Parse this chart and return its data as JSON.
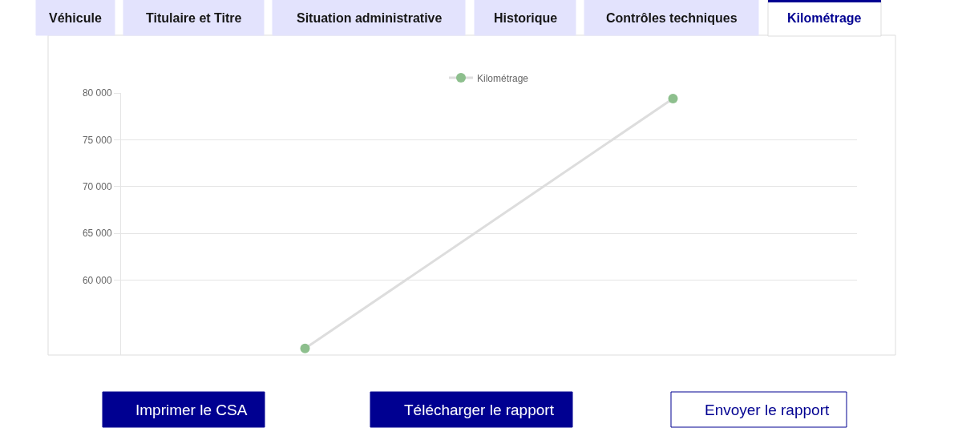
{
  "chart_data": {
    "type": "line",
    "categories": [
      null,
      null
    ],
    "series": [
      {
        "name": "Kilométrage",
        "color": "#dddddd",
        "colors": [
          "#8dbf8d",
          "#8dbf8d"
        ],
        "values": [
          52700,
          79400
        ]
      }
    ],
    "ylim": [
      52000,
      80000
    ],
    "yticks": [
      {
        "value": 60000,
        "label": "60 000"
      },
      {
        "value": 65000,
        "label": "65 000"
      },
      {
        "value": 70000,
        "label": "70 000"
      },
      {
        "value": 75000,
        "label": "75 000"
      },
      {
        "value": 80000,
        "label": "80 000"
      }
    ],
    "grid": "y",
    "legend": "top",
    "marker": "circle",
    "line_style": "solid",
    "tick_labels": "y",
    "annotations": [
      "Véhicule",
      "Titulaire et Titre",
      "Situation administrative",
      "Historique",
      "Contrôles techniques",
      "Kilométrage",
      "Imprimer le CSA",
      "Télécharger le rapport",
      "Envoyer le rapport"
    ]
  }
}
